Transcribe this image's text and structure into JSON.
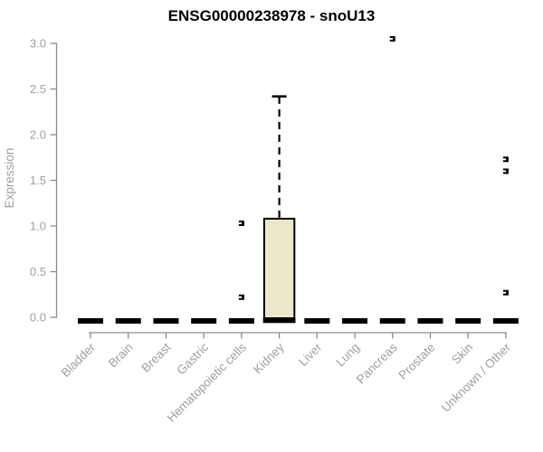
{
  "chart_data": {
    "type": "boxplot",
    "title": "ENSG00000238978 - snoU13",
    "ylabel": "Expression",
    "xlabel": "",
    "ylim": [
      0,
      3.0
    ],
    "ytick_labels": [
      "0.0",
      "0.5",
      "1.0",
      "1.5",
      "2.0",
      "2.5",
      "3.0"
    ],
    "yticks": [
      0,
      0.5,
      1.0,
      1.5,
      2.0,
      2.5,
      3.0
    ],
    "categories": [
      "Bladder",
      "Brain",
      "Breast",
      "Gastric",
      "Hematopoietic cells",
      "Kidney",
      "Liver",
      "Lung",
      "Pancreas",
      "Prostate",
      "Skin",
      "Unknown / Other"
    ],
    "boxes": [
      {
        "category": "Bladder",
        "whisker_low": 0,
        "q1": 0,
        "median": 0,
        "q3": 0,
        "whisker_high": 0,
        "outliers": []
      },
      {
        "category": "Brain",
        "whisker_low": 0,
        "q1": 0,
        "median": 0,
        "q3": 0,
        "whisker_high": 0,
        "outliers": []
      },
      {
        "category": "Breast",
        "whisker_low": 0,
        "q1": 0,
        "median": 0,
        "q3": 0,
        "whisker_high": 0,
        "outliers": []
      },
      {
        "category": "Gastric",
        "whisker_low": 0,
        "q1": 0,
        "median": 0,
        "q3": 0,
        "whisker_high": 0,
        "outliers": []
      },
      {
        "category": "Hematopoietic cells",
        "whisker_low": 0,
        "q1": 0,
        "median": 0,
        "q3": 0,
        "whisker_high": 0,
        "outliers": [
          0.22,
          1.03
        ]
      },
      {
        "category": "Kidney",
        "whisker_low": 0,
        "q1": 0,
        "median": 0,
        "q3": 1.08,
        "whisker_high": 2.42,
        "outliers": []
      },
      {
        "category": "Liver",
        "whisker_low": 0,
        "q1": 0,
        "median": 0,
        "q3": 0,
        "whisker_high": 0,
        "outliers": []
      },
      {
        "category": "Lung",
        "whisker_low": 0,
        "q1": 0,
        "median": 0,
        "q3": 0,
        "whisker_high": 0,
        "outliers": []
      },
      {
        "category": "Pancreas",
        "whisker_low": 0,
        "q1": 0,
        "median": 0,
        "q3": 0,
        "whisker_high": 0,
        "outliers": [
          3.05
        ]
      },
      {
        "category": "Prostate",
        "whisker_low": 0,
        "q1": 0,
        "median": 0,
        "q3": 0,
        "whisker_high": 0,
        "outliers": []
      },
      {
        "category": "Skin",
        "whisker_low": 0,
        "q1": 0,
        "median": 0,
        "q3": 0,
        "whisker_high": 0,
        "outliers": []
      },
      {
        "category": "Unknown / Other",
        "whisker_low": 0,
        "q1": 0,
        "median": 0,
        "q3": 0,
        "whisker_high": 0,
        "outliers": [
          0.27,
          1.6,
          1.73
        ]
      }
    ],
    "colors": {
      "box_fill": "#ECE7CB",
      "box_stroke": "#000000",
      "median": "#000000",
      "outlier": "#000000",
      "axis_line": "#8C8C8C",
      "tick_text": "#9C9FA3",
      "title_text": "#000000"
    },
    "layout": {
      "grid": false,
      "legend": "none",
      "x_label_rotation": 45
    }
  }
}
